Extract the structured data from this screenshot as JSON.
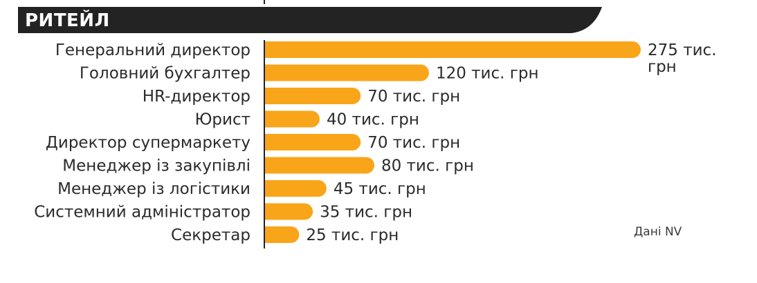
{
  "header": {
    "title": "РИТЕЙЛ"
  },
  "source_note": "Дані NV",
  "colors": {
    "bar": "#F9A51A",
    "header_bg": "#232323",
    "axis": "#222222",
    "text": "#2b2b2b"
  },
  "chart_data": {
    "type": "bar",
    "orientation": "horizontal",
    "categories": [
      "Генеральний директор",
      "Головний бухгалтер",
      "HR-директор",
      "Юрист",
      "Директор супермаркету",
      "Менеджер із закупівлі",
      "Менеджер із логістики",
      "Системний адміністратор",
      "Секретар"
    ],
    "values": [
      275,
      120,
      70,
      40,
      70,
      80,
      45,
      35,
      25
    ],
    "value_labels": [
      [
        "275 тис.",
        "грн"
      ],
      [
        "120 тис. грн"
      ],
      [
        "70 тис. грн"
      ],
      [
        "40 тис. грн"
      ],
      [
        "70 тис. грн"
      ],
      [
        "80 тис. грн"
      ],
      [
        "45 тис. грн"
      ],
      [
        "35 тис. грн"
      ],
      [
        "25 тис. грн"
      ]
    ],
    "unit": "тис. грн",
    "xlim": [
      0,
      275
    ],
    "grid": false,
    "legend": "none"
  }
}
